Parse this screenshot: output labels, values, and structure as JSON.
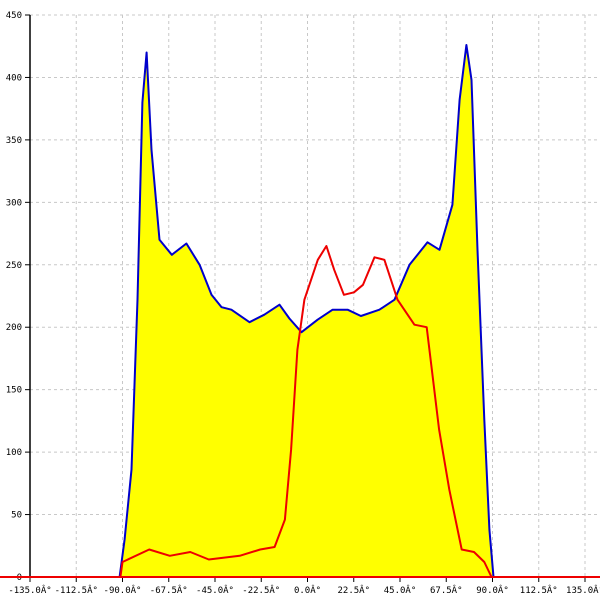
{
  "chart_data": {
    "type": "area",
    "title": "",
    "xlabel": "",
    "ylabel": "",
    "xlim": [
      -135,
      135
    ],
    "ylim": [
      0,
      450
    ],
    "grid": true,
    "x_ticks": [
      -135,
      -112.5,
      -90,
      -67.5,
      -45,
      -22.5,
      0,
      22.5,
      45,
      67.5,
      90,
      112.5,
      135
    ],
    "x_tick_labels": [
      "-135.0Â°",
      "-112.5Â°",
      "-90.0Â°",
      "-67.5Â°",
      "-45.0Â°",
      "-22.5Â°",
      "0.0Â°",
      "22.5Â°",
      "45.0Â°",
      "67.5Â°",
      "90.0Â°",
      "112.5Â°",
      "135.0Â°"
    ],
    "y_ticks": [
      0,
      50,
      100,
      150,
      200,
      250,
      300,
      350,
      400,
      450
    ],
    "y_tick_labels": [
      "0",
      "50",
      "100",
      "150",
      "200",
      "250",
      "300",
      "350",
      "400",
      "450"
    ],
    "series": [
      {
        "color": "#0000cc",
        "fill": "#ffff00",
        "filled": true,
        "points": [
          [
            -91.4,
            0
          ],
          [
            -89,
            30
          ],
          [
            -85.6,
            86
          ],
          [
            -82.7,
            222
          ],
          [
            -80.3,
            380
          ],
          [
            -78.3,
            420
          ],
          [
            -75.9,
            342
          ],
          [
            -72,
            270
          ],
          [
            -66,
            258
          ],
          [
            -58.9,
            267
          ],
          [
            -52.5,
            250
          ],
          [
            -46.7,
            226
          ],
          [
            -41.8,
            216
          ],
          [
            -37,
            214
          ],
          [
            -28.2,
            204
          ],
          [
            -21,
            210
          ],
          [
            -13.6,
            218
          ],
          [
            -8.8,
            207
          ],
          [
            -2.9,
            196
          ],
          [
            4.9,
            206
          ],
          [
            12.2,
            214
          ],
          [
            19.5,
            214
          ],
          [
            26,
            209
          ],
          [
            35,
            214
          ],
          [
            42.3,
            222
          ],
          [
            49.6,
            250
          ],
          [
            58.4,
            268
          ],
          [
            64.2,
            262
          ],
          [
            70.5,
            298
          ],
          [
            74,
            382
          ],
          [
            77.3,
            426
          ],
          [
            79.8,
            398
          ],
          [
            82.7,
            262
          ],
          [
            86,
            126
          ],
          [
            88.5,
            38
          ],
          [
            90.5,
            0
          ]
        ]
      },
      {
        "color": "#ee0000",
        "filled": false,
        "points": [
          [
            -135,
            0
          ],
          [
            -91,
            0
          ],
          [
            -90,
            12
          ],
          [
            -77,
            22
          ],
          [
            -67,
            17
          ],
          [
            -57,
            20
          ],
          [
            -48,
            14
          ],
          [
            -33,
            17
          ],
          [
            -23,
            22
          ],
          [
            -16,
            24
          ],
          [
            -11,
            46
          ],
          [
            -8,
            102
          ],
          [
            -4.9,
            182
          ],
          [
            -1.5,
            222
          ],
          [
            5,
            254
          ],
          [
            9.2,
            265
          ],
          [
            13,
            246
          ],
          [
            17.7,
            226
          ],
          [
            22.6,
            228
          ],
          [
            27,
            234
          ],
          [
            32.6,
            256
          ],
          [
            37.4,
            254
          ],
          [
            43.8,
            222
          ],
          [
            52,
            202
          ],
          [
            58,
            200
          ],
          [
            64,
            118
          ],
          [
            69,
            70
          ],
          [
            75,
            22
          ],
          [
            81,
            20
          ],
          [
            86,
            12
          ],
          [
            89.5,
            0
          ],
          [
            135,
            0
          ]
        ]
      }
    ]
  }
}
